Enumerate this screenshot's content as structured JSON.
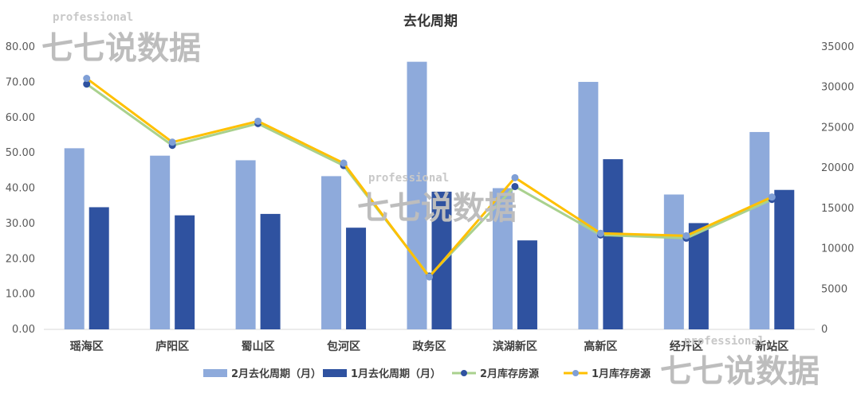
{
  "chart_data": {
    "type": "bar",
    "title": "去化周期",
    "categories": [
      "瑶海区",
      "庐阳区",
      "蜀山区",
      "包河区",
      "政务区",
      "滨湖新区",
      "高新区",
      "经开区",
      "新站区"
    ],
    "series": [
      {
        "name": "2月去化周期（月）",
        "kind": "bar",
        "axis": "left",
        "color": "#8eaadb",
        "values": [
          51.3,
          49.2,
          47.9,
          43.4,
          75.8,
          40.0,
          70.1,
          38.2,
          55.9
        ]
      },
      {
        "name": "1月去化周期（月）",
        "kind": "bar",
        "axis": "left",
        "color": "#2f52a0",
        "values": [
          34.6,
          32.3,
          32.7,
          28.8,
          39.0,
          25.2,
          48.2,
          30.1,
          39.5
        ]
      },
      {
        "name": "2月库存房源",
        "kind": "line",
        "axis": "right",
        "color": "#a9d18e",
        "marker": "#2f52a0",
        "values": [
          30400,
          22800,
          25500,
          20300,
          6600,
          17700,
          11700,
          11300,
          16100
        ]
      },
      {
        "name": "1月库存房源",
        "kind": "line",
        "axis": "right",
        "color": "#ffc000",
        "marker": "#7f9fd6",
        "values": [
          31100,
          23200,
          25800,
          20600,
          6500,
          18800,
          11900,
          11600,
          16400
        ]
      }
    ],
    "y_left": {
      "min": 0,
      "max": 80,
      "step": 10,
      "ticks": [
        "0.00",
        "10.00",
        "20.00",
        "30.00",
        "40.00",
        "50.00",
        "60.00",
        "70.00",
        "80.00"
      ]
    },
    "y_right": {
      "min": 0,
      "max": 35000,
      "step": 5000,
      "ticks": [
        "0",
        "5000",
        "10000",
        "15000",
        "20000",
        "25000",
        "30000",
        "35000"
      ]
    },
    "grid": false,
    "legend": "bottom"
  },
  "watermark": {
    "small": "professional",
    "big": "七七说数据"
  }
}
